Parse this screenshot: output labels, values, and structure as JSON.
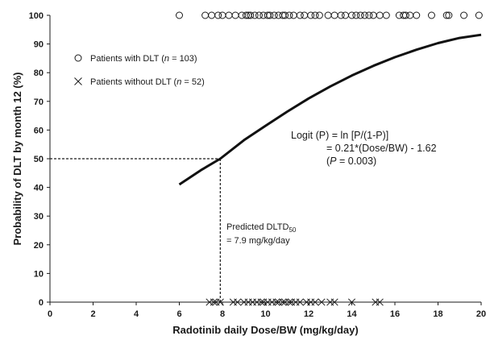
{
  "chart_data": {
    "type": "scatter",
    "xlabel": "Radotinib daily Dose/BW (mg/kg/day)",
    "ylabel": "Probability of DLT by month 12 (%)",
    "xlim": [
      0,
      20
    ],
    "ylim": [
      0,
      100
    ],
    "xticks": [
      0,
      2,
      4,
      6,
      8,
      10,
      12,
      14,
      16,
      18,
      20
    ],
    "yticks": [
      0,
      10,
      20,
      30,
      40,
      50,
      60,
      70,
      80,
      90,
      100
    ],
    "grid": false,
    "legend_position": "top-left",
    "legend": {
      "with_dlt": {
        "text": "Patients with DLT (",
        "italic": "n",
        "rest": " = 103)"
      },
      "without_dlt": {
        "text": "Patients without DLT (",
        "italic": "n",
        "rest": " = 52)"
      }
    },
    "series": [
      {
        "name": "Patients with DLT (n = 103)",
        "marker": "circle",
        "y": 100,
        "x": [
          6.0,
          7.2,
          7.5,
          7.8,
          8.0,
          8.3,
          8.6,
          8.9,
          9.1,
          9.2,
          9.3,
          9.5,
          9.7,
          9.9,
          10.1,
          10.2,
          10.4,
          10.6,
          10.8,
          10.9,
          11.1,
          11.3,
          11.6,
          11.8,
          12.1,
          12.3,
          12.5,
          12.9,
          13.2,
          13.5,
          13.7,
          14.0,
          14.2,
          14.4,
          14.6,
          14.8,
          15.0,
          15.3,
          15.6,
          16.2,
          16.4,
          16.5,
          16.7,
          17.0,
          17.7,
          18.4,
          18.5,
          19.2,
          19.9
        ]
      },
      {
        "name": "Patients without DLT (n = 52)",
        "marker": "x",
        "y": 0,
        "x": [
          7.4,
          7.6,
          7.7,
          7.9,
          8.5,
          8.7,
          9.0,
          9.2,
          9.4,
          9.6,
          9.8,
          9.9,
          10.1,
          10.3,
          10.5,
          10.6,
          10.8,
          10.9,
          11.1,
          11.2,
          11.4,
          11.6,
          11.9,
          12.1,
          12.3,
          12.6,
          13.0,
          13.2,
          14.0,
          15.1,
          15.3
        ]
      },
      {
        "name": "Logistic fit",
        "type": "line",
        "x": [
          6,
          7,
          7.9,
          9,
          10,
          11,
          12,
          13,
          14,
          15,
          16,
          17,
          18,
          19,
          20
        ],
        "y": [
          41.0,
          46.0,
          50.0,
          56.5,
          61.5,
          66.4,
          71.0,
          75.2,
          79.0,
          82.4,
          85.4,
          88.0,
          90.3,
          92.1,
          93.2
        ]
      }
    ],
    "reference": {
      "x": 7.9,
      "y": 50
    },
    "annotations": {
      "logit_line1": "Logit (P) = ln [P/(1-P)]",
      "logit_line2": "= 0.21*(Dose/BW) - 1.62",
      "logit_line3_open": "(",
      "logit_line3_p": "P",
      "logit_line3_rest": " = 0.003)",
      "dltd_label": "Predicted DLTD",
      "dltd_sub": "50",
      "dltd_value": "= 7.9 mg/kg/day"
    }
  }
}
